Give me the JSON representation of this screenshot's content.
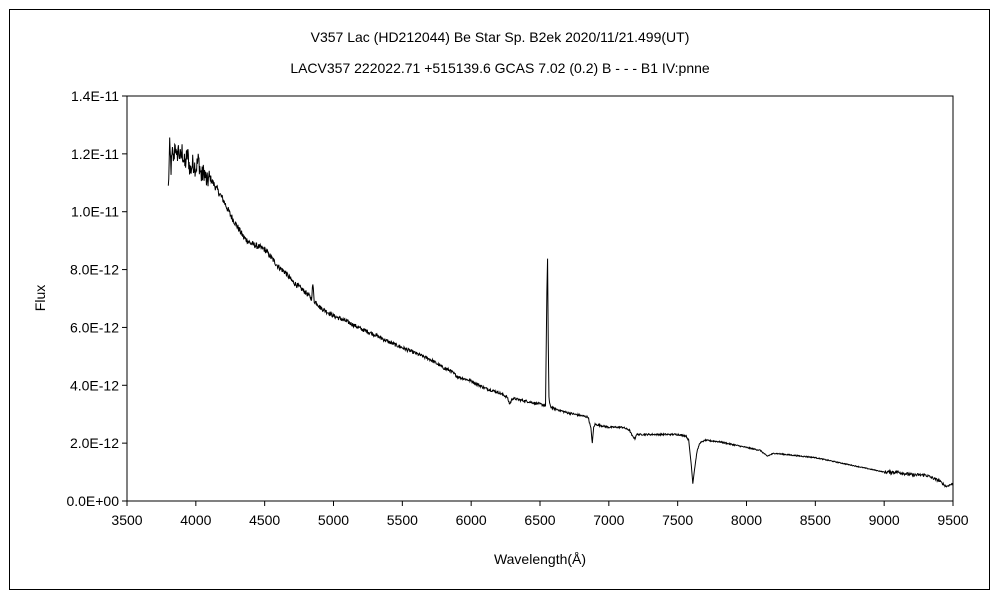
{
  "chart_data": {
    "type": "line",
    "title": "V357 Lac (HD212044)    Be Star    Sp. B2ek    2020/11/21.499(UT)",
    "subtitle": "LACV357 222022.71 +515139.6 GCAS 7.02 (0.2) B - - - B1 IV:pnne",
    "xlabel": "Wavelength(Å)",
    "ylabel": "Flux",
    "xlim": [
      3500,
      9500
    ],
    "ylim": [
      0,
      1.4e-11
    ],
    "x_ticks": [
      "3500",
      "4000",
      "4500",
      "5000",
      "5500",
      "6000",
      "6500",
      "7000",
      "7500",
      "8000",
      "8500",
      "9000",
      "9500"
    ],
    "y_ticks": [
      "0.0E+00",
      "2.0E-12",
      "4.0E-12",
      "6.0E-12",
      "8.0E-12",
      "1.0E-11",
      "1.2E-11",
      "1.4E-11"
    ],
    "grid": false,
    "legend": "none",
    "line_color": "#000000",
    "series": [
      {
        "x": [
          3800,
          3810,
          3820,
          3830,
          3840,
          3850,
          3860,
          3870,
          3880,
          3890,
          3900,
          3920,
          3940,
          3960,
          3980,
          4000,
          4020,
          4040,
          4060,
          4080,
          4100,
          4150,
          4200,
          4250,
          4300,
          4350,
          4400,
          4450,
          4500,
          4550,
          4600,
          4650,
          4700,
          4750,
          4800,
          4840,
          4850,
          4860,
          4880,
          4900,
          4950,
          5000,
          5100,
          5200,
          5300,
          5400,
          5500,
          5600,
          5700,
          5800,
          5850,
          5900,
          6000,
          6100,
          6200,
          6260,
          6280,
          6300,
          6400,
          6500,
          6540,
          6550,
          6555,
          6560,
          6565,
          6570,
          6580,
          6600,
          6700,
          6800,
          6850,
          6870,
          6880,
          6890,
          6900,
          6950,
          7000,
          7100,
          7150,
          7170,
          7190,
          7200,
          7250,
          7300,
          7400,
          7500,
          7560,
          7580,
          7600,
          7610,
          7620,
          7640,
          7660,
          7700,
          7800,
          7900,
          8000,
          8100,
          8150,
          8200,
          8300,
          8400,
          8500,
          8600,
          8700,
          8800,
          8900,
          9000,
          9100,
          9200,
          9300,
          9400,
          9450,
          9500
        ],
        "y": [
          1.08e-11,
          1.22e-11,
          1.15e-11,
          1.2e-11,
          1.18e-11,
          1.25e-11,
          1.17e-11,
          1.22e-11,
          1.2e-11,
          1.18e-11,
          1.21e-11,
          1.16e-11,
          1.2e-11,
          1.14e-11,
          1.17e-11,
          1.15e-11,
          1.18e-11,
          1.12e-11,
          1.14e-11,
          1.1e-11,
          1.12e-11,
          1.08e-11,
          1.04e-11,
          9.9e-12,
          9.5e-12,
          9.1e-12,
          8.9e-12,
          8.8e-12,
          8.7e-12,
          8.4e-12,
          8.1e-12,
          7.9e-12,
          7.6e-12,
          7.4e-12,
          7.2e-12,
          7e-12,
          7.5e-12,
          6.9e-12,
          6.85e-12,
          6.7e-12,
          6.55e-12,
          6.4e-12,
          6.2e-12,
          5.95e-12,
          5.75e-12,
          5.5e-12,
          5.3e-12,
          5.1e-12,
          4.9e-12,
          4.6e-12,
          4.5e-12,
          4.3e-12,
          4.15e-12,
          3.9e-12,
          3.75e-12,
          3.6e-12,
          3.35e-12,
          3.55e-12,
          3.45e-12,
          3.35e-12,
          3.3e-12,
          7.2e-12,
          8.3e-12,
          5.5e-12,
          3.6e-12,
          3.35e-12,
          3.25e-12,
          3.2e-12,
          3.05e-12,
          2.95e-12,
          2.9e-12,
          2.5e-12,
          2e-12,
          2.55e-12,
          2.65e-12,
          2.6e-12,
          2.55e-12,
          2.55e-12,
          2.45e-12,
          2.25e-12,
          2.15e-12,
          2.3e-12,
          2.3e-12,
          2.3e-12,
          2.3e-12,
          2.3e-12,
          2.25e-12,
          2.1e-12,
          1.2e-12,
          6e-13,
          1e-12,
          1.7e-12,
          2e-12,
          2.1e-12,
          2.05e-12,
          1.95e-12,
          1.85e-12,
          1.75e-12,
          1.55e-12,
          1.65e-12,
          1.6e-12,
          1.55e-12,
          1.5e-12,
          1.4e-12,
          1.3e-12,
          1.2e-12,
          1.1e-12,
          1e-12,
          1e-12,
          9e-13,
          9e-13,
          7e-13,
          5e-13,
          6e-13
        ]
      }
    ]
  }
}
